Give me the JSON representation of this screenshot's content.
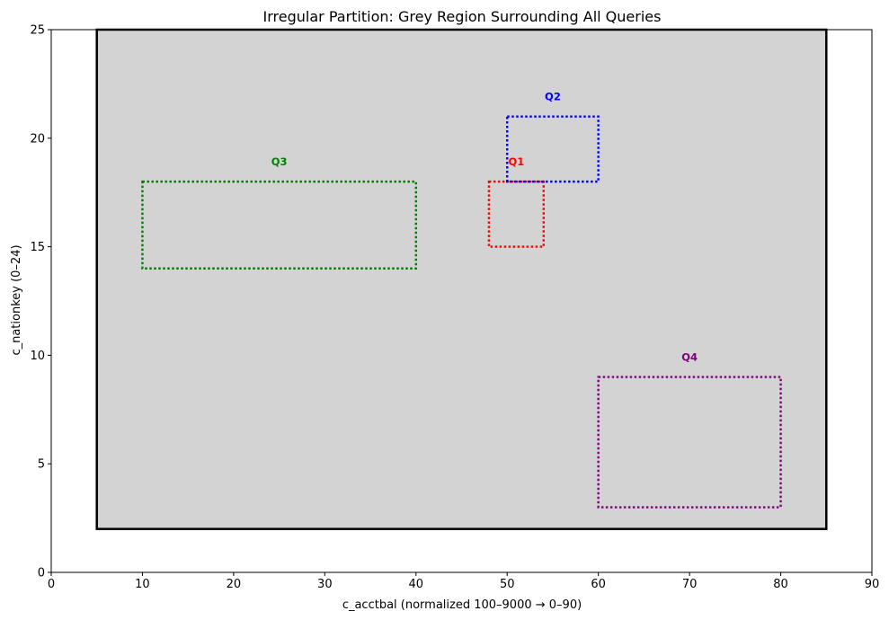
{
  "chart_data": {
    "type": "scatter",
    "title": "Irregular Partition: Grey Region Surrounding All Queries",
    "xlabel": "c_acctbal (normalized 100–9000 → 0–90)",
    "ylabel": "c_nationkey (0–24)",
    "xlim": [
      0,
      90
    ],
    "ylim": [
      0,
      25
    ],
    "xticks": [
      "0",
      "10",
      "20",
      "30",
      "40",
      "50",
      "60",
      "70",
      "80",
      "90"
    ],
    "yticks": [
      "0",
      "5",
      "10",
      "15",
      "20",
      "25"
    ],
    "grid": false,
    "region": {
      "x0": 5,
      "x1": 85,
      "y0": 2,
      "y1": 25,
      "fill": "#d3d3d3",
      "edge": "#000000"
    },
    "queries": [
      {
        "label": "Q1",
        "x0": 48,
        "x1": 54,
        "y0": 15,
        "y1": 18,
        "color": "#ff0000"
      },
      {
        "label": "Q2",
        "x0": 50,
        "x1": 60,
        "y0": 18,
        "y1": 21,
        "color": "#0000ff"
      },
      {
        "label": "Q3",
        "x0": 10,
        "x1": 40,
        "y0": 14,
        "y1": 18,
        "color": "#008000"
      },
      {
        "label": "Q4",
        "x0": 60,
        "x1": 80,
        "y0": 3,
        "y1": 9,
        "color": "#800080"
      }
    ]
  }
}
